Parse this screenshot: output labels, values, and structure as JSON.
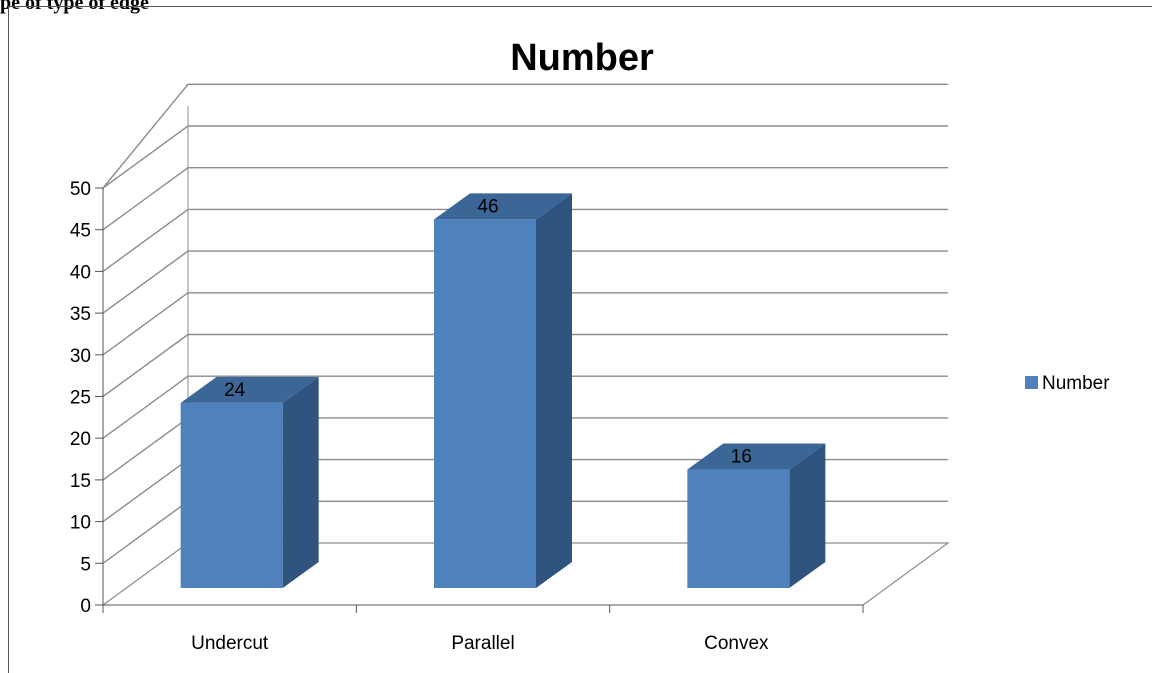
{
  "document": {
    "header_fragment": "pe of type of edge"
  },
  "chart_data": {
    "type": "bar",
    "style": "3d-column",
    "title": "Number",
    "categories": [
      "Undercut",
      "Parallel",
      "Convex"
    ],
    "series": [
      {
        "name": "Number",
        "values": [
          24,
          46,
          16
        ],
        "color": "#4F81BD"
      }
    ],
    "ylim": [
      0,
      50
    ],
    "yticks": [
      0,
      5,
      10,
      15,
      20,
      25,
      30,
      35,
      40,
      45,
      50
    ],
    "xlabel": "",
    "ylabel": "",
    "grid": true,
    "data_labels": true,
    "legend_position": "right",
    "colors": {
      "bar_front": "#4F81BD",
      "bar_side": "#2F5480",
      "bar_top": "#3B6696",
      "grid": "#8C8C8C"
    }
  }
}
